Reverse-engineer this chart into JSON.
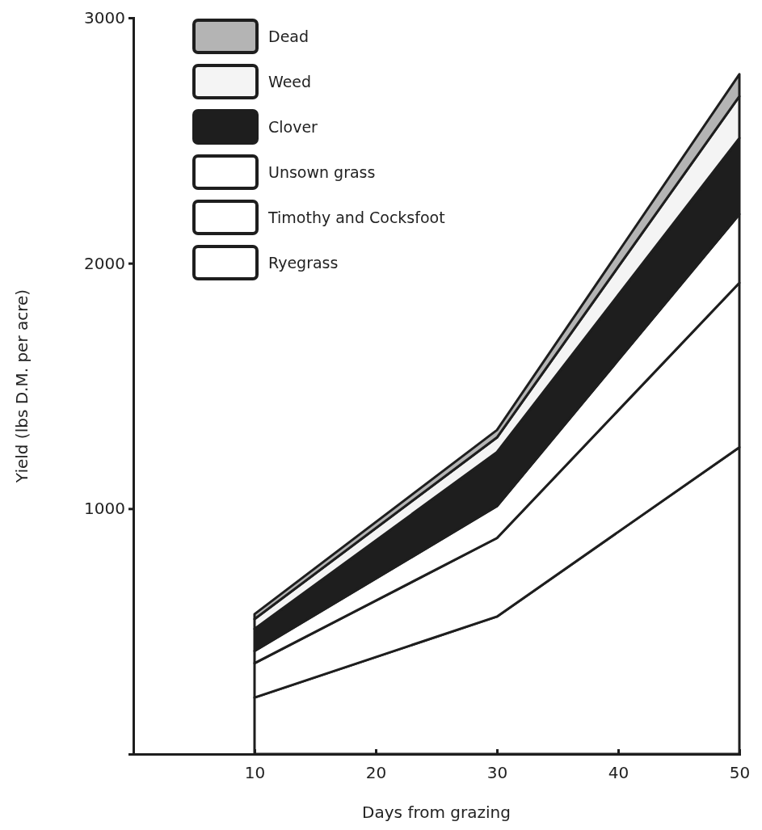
{
  "chart_data": {
    "type": "area",
    "stacked": true,
    "xlabel": "Days from grazing",
    "ylabel": "Yield (lbs D.M. per acre)",
    "x": [
      10,
      30,
      50
    ],
    "xlim": [
      0,
      50
    ],
    "xticks": [
      10,
      20,
      30,
      40,
      50
    ],
    "ylim": [
      0,
      3000
    ],
    "yticks": [
      1000,
      2000,
      3000
    ],
    "legend": "top left",
    "grid": false,
    "series": [
      {
        "name": "Ryegrass",
        "color": "#ffffff",
        "values": [
          230,
          560,
          1250
        ]
      },
      {
        "name": "Timothy and Cocksfoot",
        "color": "#ffffff",
        "values": [
          140,
          320,
          670
        ]
      },
      {
        "name": "Unsown grass",
        "color": "#ffffff",
        "values": [
          50,
          130,
          280
        ]
      },
      {
        "name": "Clover",
        "color": "#1e1e1e",
        "values": [
          90,
          220,
          310
        ]
      },
      {
        "name": "Weed",
        "color": "#f4f4f4",
        "values": [
          40,
          60,
          170
        ]
      },
      {
        "name": "Dead",
        "color": "#b4b4b4",
        "values": [
          20,
          30,
          90
        ]
      }
    ]
  }
}
